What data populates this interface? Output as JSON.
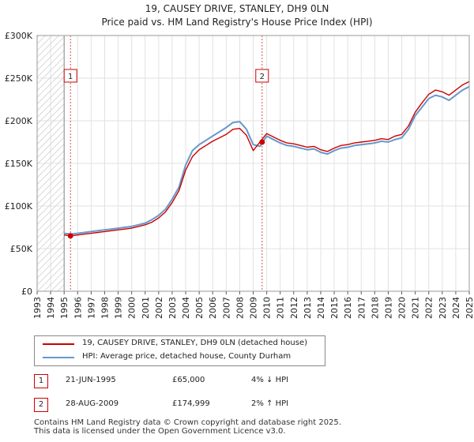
{
  "header": {
    "title": "19, CAUSEY DRIVE, STANLEY, DH9 0LN",
    "subtitle": "Price paid vs. HM Land Registry's House Price Index (HPI)"
  },
  "colors": {
    "property": "#cc0000",
    "hpi": "#6699cc"
  },
  "legend": {
    "property_label": "19, CAUSEY DRIVE, STANLEY, DH9 0LN (detached house)",
    "hpi_label": "HPI: Average price, detached house, County Durham"
  },
  "sales": [
    {
      "marker": "1",
      "date": "21-JUN-1995",
      "price": "£65,000",
      "hpi_delta": "4% ↓ HPI"
    },
    {
      "marker": "2",
      "date": "28-AUG-2009",
      "price": "£174,999",
      "hpi_delta": "2% ↑ HPI"
    }
  ],
  "footer": {
    "line1": "Contains HM Land Registry data © Crown copyright and database right 2025.",
    "line2": "This data is licensed under the Open Government Licence v3.0."
  },
  "chart_data": {
    "type": "line",
    "title": "19, CAUSEY DRIVE, STANLEY, DH9 0LN",
    "subtitle": "Price paid vs. HM Land Registry's House Price Index (HPI)",
    "xlabel": "",
    "ylabel": "",
    "xlim": [
      1993,
      2025
    ],
    "ylim": [
      0,
      300000
    ],
    "grid": true,
    "y_ticks": [
      0,
      50000,
      100000,
      150000,
      200000,
      250000,
      300000
    ],
    "y_tick_labels": [
      "£0",
      "£50K",
      "£100K",
      "£150K",
      "£200K",
      "£250K",
      "£300K"
    ],
    "x_ticks": [
      1993,
      1994,
      1995,
      1996,
      1997,
      1998,
      1999,
      2000,
      2001,
      2002,
      2003,
      2004,
      2005,
      2006,
      2007,
      2008,
      2009,
      2010,
      2011,
      2012,
      2013,
      2014,
      2015,
      2016,
      2017,
      2018,
      2019,
      2020,
      2021,
      2022,
      2023,
      2024,
      2025
    ],
    "x_tick_labels": [
      "1993",
      "1994",
      "1995",
      "1996",
      "1997",
      "1998",
      "1999",
      "2000",
      "2001",
      "2002",
      "2003",
      "2004",
      "2005",
      "2006",
      "2007",
      "2008",
      "2009",
      "2010",
      "2011",
      "2012",
      "2013",
      "2014",
      "2015",
      "2016",
      "2017",
      "2018",
      "2019",
      "2020",
      "2021",
      "2022",
      "2023",
      "2024",
      "2025"
    ],
    "data_start_year": 1995.0,
    "hatch_before_year": 1995.0,
    "sale_markers": [
      {
        "label": "1",
        "x": 1995.47,
        "y": 65000
      },
      {
        "label": "2",
        "x": 2009.66,
        "y": 174999
      }
    ],
    "series": [
      {
        "name": "HPI: Average price, detached house, County Durham",
        "color": "#6699cc",
        "x": [
          1995.0,
          1995.5,
          1996.0,
          1996.5,
          1997.0,
          1997.5,
          1998.0,
          1998.5,
          1999.0,
          1999.5,
          2000.0,
          2000.5,
          2001.0,
          2001.5,
          2002.0,
          2002.5,
          2003.0,
          2003.5,
          2004.0,
          2004.5,
          2005.0,
          2005.5,
          2006.0,
          2006.5,
          2007.0,
          2007.5,
          2008.0,
          2008.5,
          2009.0,
          2009.5,
          2010.0,
          2010.5,
          2011.0,
          2011.5,
          2012.0,
          2012.5,
          2013.0,
          2013.5,
          2014.0,
          2014.5,
          2015.0,
          2015.5,
          2016.0,
          2016.5,
          2017.0,
          2017.5,
          2018.0,
          2018.5,
          2019.0,
          2019.5,
          2020.0,
          2020.5,
          2021.0,
          2021.5,
          2022.0,
          2022.5,
          2023.0,
          2023.5,
          2024.0,
          2024.5,
          2025.0
        ],
        "values": [
          68000,
          67000,
          68000,
          69000,
          70000,
          71000,
          72000,
          73000,
          74000,
          75000,
          76000,
          78000,
          80000,
          84000,
          89000,
          96000,
          108000,
          122000,
          148000,
          165000,
          172000,
          177000,
          182000,
          187000,
          192000,
          198000,
          199000,
          190000,
          172000,
          170000,
          182000,
          178000,
          174000,
          171000,
          170000,
          168000,
          166000,
          167000,
          163000,
          161000,
          165000,
          168000,
          169000,
          171000,
          172000,
          173000,
          174000,
          176000,
          175000,
          178000,
          180000,
          190000,
          206000,
          216000,
          226000,
          230000,
          228000,
          224000,
          230000,
          236000,
          240000
        ]
      },
      {
        "name": "19, CAUSEY DRIVE, STANLEY, DH9 0LN (detached house)",
        "color": "#cc0000",
        "x": [
          1995.0,
          1995.5,
          1996.0,
          1996.5,
          1997.0,
          1997.5,
          1998.0,
          1998.5,
          1999.0,
          1999.5,
          2000.0,
          2000.5,
          2001.0,
          2001.5,
          2002.0,
          2002.5,
          2003.0,
          2003.5,
          2004.0,
          2004.5,
          2005.0,
          2005.5,
          2006.0,
          2006.5,
          2007.0,
          2007.5,
          2008.0,
          2008.5,
          2009.0,
          2009.5,
          2010.0,
          2010.5,
          2011.0,
          2011.5,
          2012.0,
          2012.5,
          2013.0,
          2013.5,
          2014.0,
          2014.5,
          2015.0,
          2015.5,
          2016.0,
          2016.5,
          2017.0,
          2017.5,
          2018.0,
          2018.5,
          2019.0,
          2019.5,
          2020.0,
          2020.5,
          2021.0,
          2021.5,
          2022.0,
          2022.5,
          2023.0,
          2023.5,
          2024.0,
          2024.5,
          2025.0
        ],
        "values": [
          66000,
          65000,
          66000,
          67000,
          68000,
          69000,
          70000,
          71000,
          72000,
          73000,
          74000,
          76000,
          78000,
          81000,
          86000,
          93000,
          104000,
          118000,
          142000,
          158000,
          166000,
          171000,
          176000,
          180000,
          184000,
          190000,
          191000,
          183000,
          165000,
          175000,
          185000,
          181000,
          177000,
          174000,
          173000,
          171000,
          169000,
          170000,
          166000,
          164000,
          168000,
          171000,
          172000,
          174000,
          175000,
          176000,
          177000,
          179000,
          178000,
          182000,
          184000,
          194000,
          210000,
          221000,
          231000,
          236000,
          234000,
          230000,
          236000,
          242000,
          246000
        ]
      }
    ]
  }
}
